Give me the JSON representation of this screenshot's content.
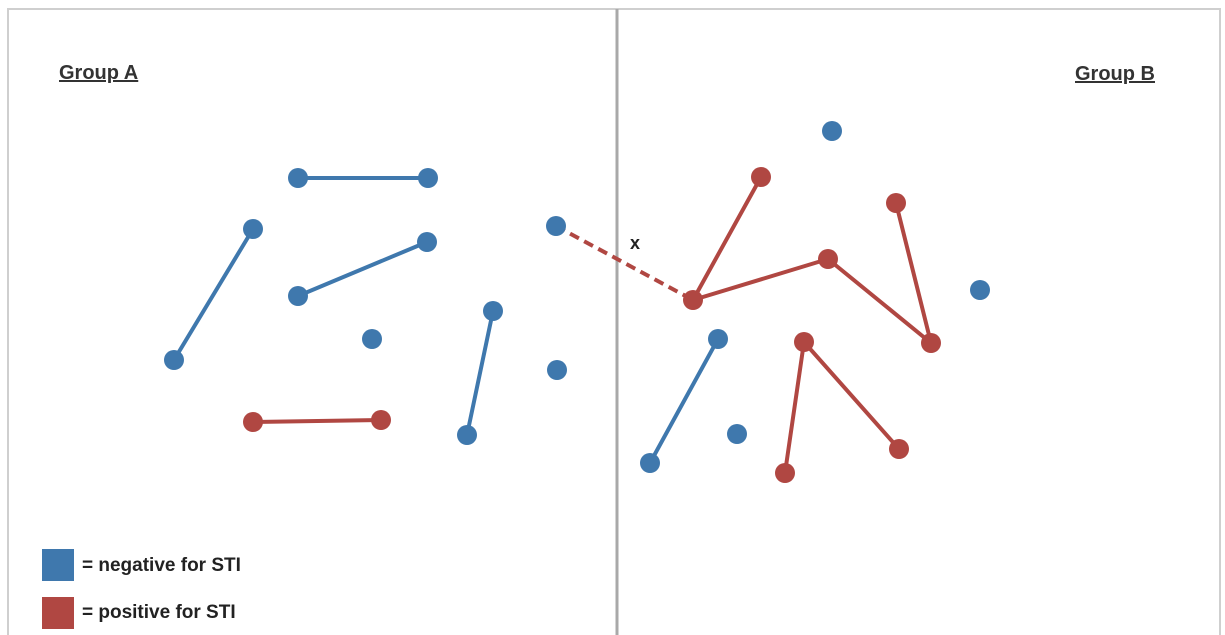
{
  "colors": {
    "negative": "#3f78ad",
    "positive": "#b04742",
    "border": "#cfcfcf",
    "divider": "#a9a9a9"
  },
  "groups": {
    "a_label": "Group A",
    "b_label": "Group B"
  },
  "cross_edge_label": "x",
  "legend": {
    "negative_label": "= negative for STI",
    "positive_label": "= positive for STI"
  },
  "nodes": [
    {
      "id": "a1",
      "status": "negative"
    },
    {
      "id": "a2",
      "status": "negative"
    },
    {
      "id": "a3",
      "status": "negative"
    },
    {
      "id": "a4",
      "status": "negative"
    },
    {
      "id": "a5",
      "status": "negative"
    },
    {
      "id": "a6",
      "status": "negative"
    },
    {
      "id": "a7",
      "status": "negative"
    },
    {
      "id": "a8",
      "status": "negative"
    },
    {
      "id": "a9",
      "status": "negative"
    },
    {
      "id": "a10",
      "status": "negative"
    },
    {
      "id": "a11",
      "status": "negative"
    },
    {
      "id": "a12",
      "status": "positive"
    },
    {
      "id": "a13",
      "status": "positive"
    },
    {
      "id": "a14",
      "status": "negative"
    },
    {
      "id": "b1",
      "status": "negative"
    },
    {
      "id": "b2",
      "status": "positive"
    },
    {
      "id": "b3",
      "status": "positive"
    },
    {
      "id": "b4",
      "status": "positive"
    },
    {
      "id": "b5",
      "status": "positive"
    },
    {
      "id": "b6",
      "status": "negative"
    },
    {
      "id": "b7",
      "status": "positive"
    },
    {
      "id": "b8",
      "status": "negative"
    },
    {
      "id": "b9",
      "status": "positive"
    },
    {
      "id": "b10",
      "status": "negative"
    },
    {
      "id": "b11",
      "status": "negative"
    },
    {
      "id": "b12",
      "status": "positive"
    },
    {
      "id": "b13",
      "status": "positive"
    }
  ],
  "edges": [
    {
      "from": "a1",
      "to": "a2",
      "status": "negative"
    },
    {
      "from": "a3",
      "to": "a4",
      "status": "negative"
    },
    {
      "from": "a5",
      "to": "a6",
      "status": "negative"
    },
    {
      "from": "a9",
      "to": "a11",
      "status": "negative"
    },
    {
      "from": "a12",
      "to": "a13",
      "status": "positive"
    },
    {
      "from": "b2",
      "to": "b5"
    },
    {
      "from": "b5",
      "to": "b4"
    },
    {
      "from": "b4",
      "to": "b7"
    },
    {
      "from": "b3",
      "to": "b7"
    },
    {
      "from": "b8",
      "to": "b10"
    },
    {
      "from": "b9",
      "to": "b13"
    },
    {
      "from": "b9",
      "to": "b12"
    }
  ],
  "cross_edge": {
    "from": "a7",
    "to": "b5"
  }
}
